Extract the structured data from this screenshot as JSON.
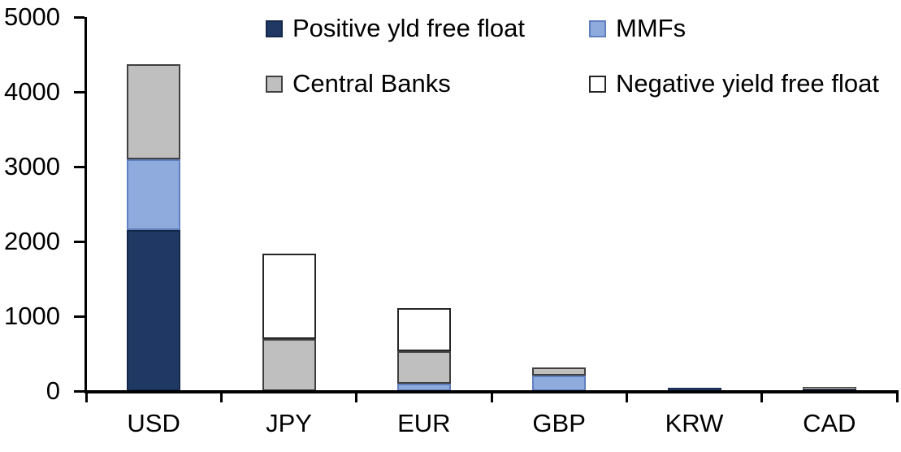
{
  "chart_data": {
    "type": "bar",
    "stacked": true,
    "title": "",
    "xlabel": "",
    "ylabel": "",
    "categories": [
      "USD",
      "JPY",
      "EUR",
      "GBP",
      "KRW",
      "CAD"
    ],
    "series": [
      {
        "name": "Positive yld free float",
        "color": "#1F3864",
        "border": "#16284a",
        "values": [
          2150,
          0,
          0,
          0,
          40,
          25
        ]
      },
      {
        "name": "MMFs",
        "color": "#8FAADC",
        "border": "#5f7fbe",
        "values": [
          950,
          0,
          100,
          210,
          0,
          0
        ]
      },
      {
        "name": "Central Banks",
        "color": "#BFBFBF",
        "border": "#404040",
        "values": [
          1270,
          700,
          435,
          105,
          0,
          30
        ]
      },
      {
        "name": "Negative yield free float",
        "color": "#FFFFFF",
        "border": "#262626",
        "values": [
          0,
          1140,
          575,
          0,
          0,
          0
        ]
      }
    ],
    "ylim": [
      0,
      5000
    ],
    "yticks": [
      0,
      1000,
      2000,
      3000,
      4000,
      5000
    ],
    "legend_position": "top",
    "legend_columns": 2,
    "grid": false,
    "axis_color": "#000000",
    "text_color": "#000000",
    "background_color": "#ffffff"
  }
}
